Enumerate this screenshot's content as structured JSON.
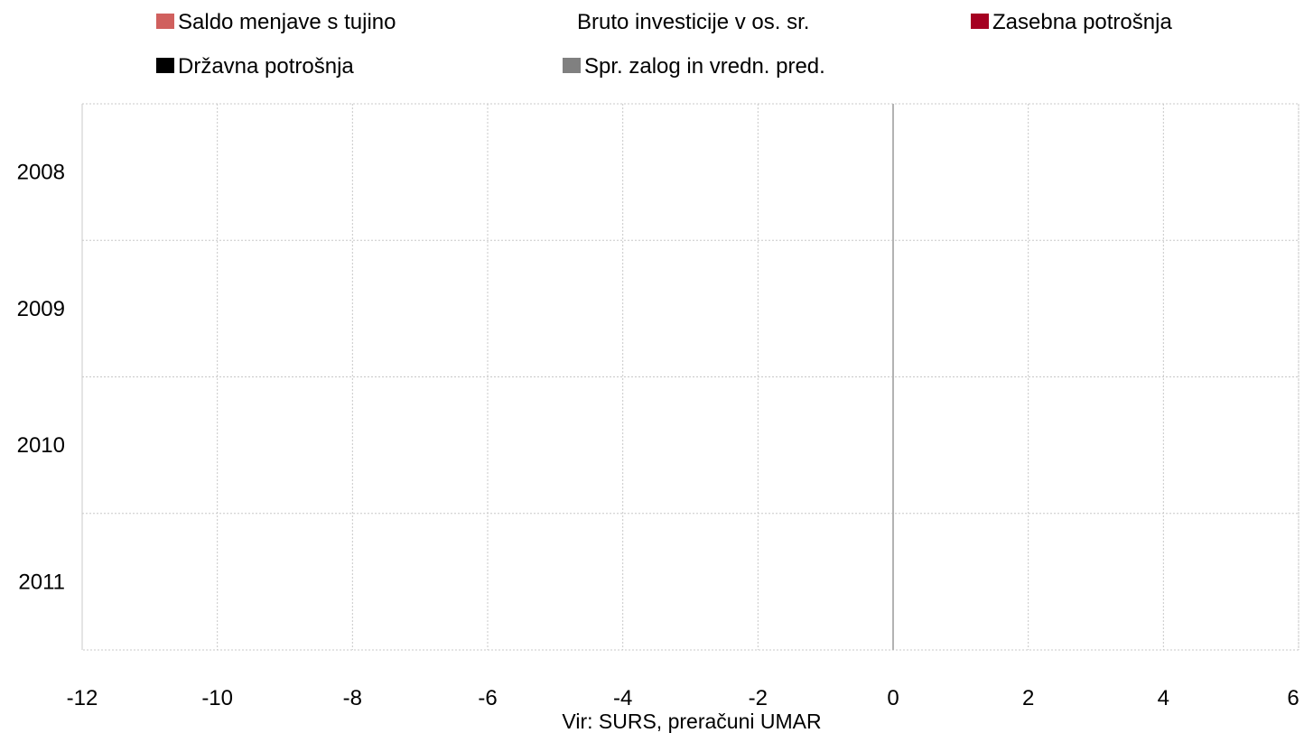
{
  "chart_data": {
    "type": "bar",
    "orientation": "horizontal",
    "stacked": true,
    "categories": [
      "2008",
      "2009",
      "2010",
      "2011"
    ],
    "series": [
      {
        "name": "Saldo menjave s tujino",
        "color": "#d0605e",
        "values": [
          null,
          null,
          null,
          null
        ]
      },
      {
        "name": "Bruto investicije v os. sr.",
        "color": "#ffffff",
        "values": [
          null,
          null,
          null,
          null
        ]
      },
      {
        "name": "Zasebna potrošnja",
        "color": "#a50021",
        "values": [
          null,
          null,
          null,
          null
        ]
      },
      {
        "name": "Državna potrošnja",
        "color": "#000000",
        "values": [
          null,
          null,
          null,
          null
        ]
      },
      {
        "name": "Spr. zalog in vredn. pred.",
        "color": "#808080",
        "values": [
          null,
          null,
          null,
          null
        ]
      }
    ],
    "xlim": [
      -12,
      6
    ],
    "x_ticks": [
      "-12",
      "-10",
      "-8",
      "-6",
      "-4",
      "-2",
      "0",
      "2",
      "4",
      "6"
    ],
    "grid": true,
    "legend_position": "top",
    "source": "Vir: SURS, preračuni UMAR"
  }
}
